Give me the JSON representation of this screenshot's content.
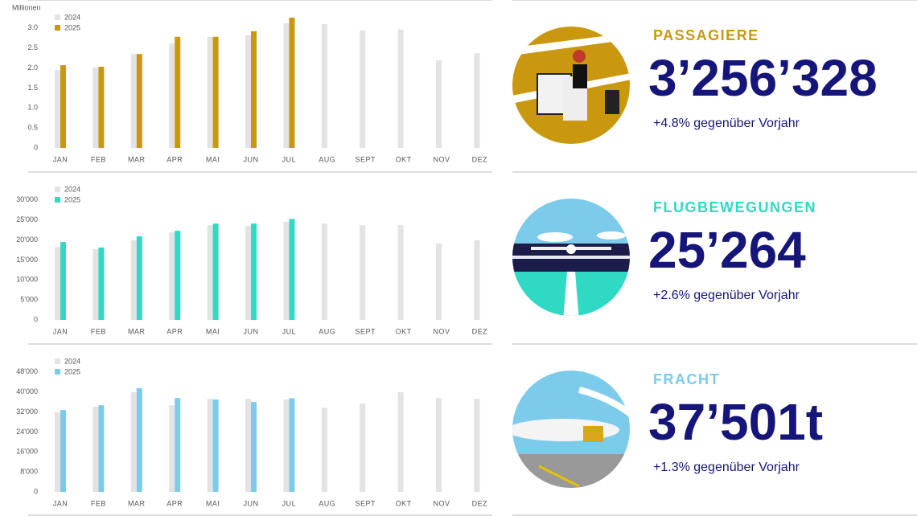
{
  "chart_data": [
    {
      "type": "bar",
      "axis_label": "Millionen",
      "categories": [
        "JAN",
        "FEB",
        "MAR",
        "APR",
        "MAI",
        "JUN",
        "JUL",
        "AUG",
        "SEPT",
        "OKT",
        "NOV",
        "DEZ"
      ],
      "series": [
        {
          "name": "2024",
          "color": "#e3e3e3",
          "values": [
            1.95,
            2.01,
            2.35,
            2.62,
            2.78,
            2.82,
            3.12,
            3.1,
            2.94,
            2.96,
            2.19,
            2.37
          ]
        },
        {
          "name": "2025",
          "color": "#c9980f",
          "values": [
            2.07,
            2.03,
            2.35,
            2.78,
            2.78,
            2.92,
            3.26,
            null,
            null,
            null,
            null,
            null
          ]
        }
      ],
      "ylim": [
        0,
        3.5
      ],
      "yticks": [
        0,
        0.5,
        {
          "value": 1,
          "label": "1.0"
        },
        1.5,
        {
          "value": 2,
          "label": "2.0"
        },
        2.5,
        {
          "value": 3,
          "label": "3.0"
        }
      ]
    },
    {
      "type": "bar",
      "categories": [
        "JAN",
        "FEB",
        "MAR",
        "APR",
        "MAI",
        "JUN",
        "JUL",
        "AUG",
        "SEPT",
        "OKT",
        "NOV",
        "DEZ"
      ],
      "series": [
        {
          "name": "2024",
          "color": "#e3e3e3",
          "values": [
            18300,
            17700,
            19900,
            21900,
            23700,
            23500,
            24500,
            24100,
            23700,
            23700,
            19100,
            19900
          ]
        },
        {
          "name": "2025",
          "color": "#2fd9c3",
          "values": [
            19500,
            18100,
            20900,
            22300,
            24100,
            24100,
            25264,
            null,
            null,
            null,
            null,
            null
          ]
        }
      ],
      "ylim": [
        0,
        35000
      ],
      "yticks": [
        0,
        {
          "value": 5000,
          "label": "5'000"
        },
        {
          "value": 10000,
          "label": "10'000"
        },
        {
          "value": 15000,
          "label": "15'000"
        },
        {
          "value": 20000,
          "label": "20'000"
        },
        {
          "value": 25000,
          "label": "25'000"
        },
        {
          "value": 30000,
          "label": "30'000"
        }
      ]
    },
    {
      "type": "bar",
      "categories": [
        "JAN",
        "FEB",
        "MAR",
        "APR",
        "MAI",
        "JUN",
        "JUL",
        "AUG",
        "SEPT",
        "OKT",
        "NOV",
        "DEZ"
      ],
      "series": [
        {
          "name": "2024",
          "color": "#e3e3e3",
          "values": [
            31800,
            34100,
            39900,
            34700,
            37300,
            37300,
            37000,
            33700,
            35400,
            39900,
            37600,
            37300
          ]
        },
        {
          "name": "2025",
          "color": "#7ccbeb",
          "values": [
            32800,
            34700,
            41500,
            37600,
            37000,
            36000,
            37501,
            null,
            null,
            null,
            null,
            null
          ]
        }
      ],
      "ylim": [
        0,
        56000
      ],
      "yticks": [
        0,
        {
          "value": 8000,
          "label": "8'000"
        },
        {
          "value": 16000,
          "label": "16'000"
        },
        {
          "value": 24000,
          "label": "24'000"
        },
        {
          "value": 32000,
          "label": "32'000"
        },
        {
          "value": 40000,
          "label": "40'000"
        },
        {
          "value": 48000,
          "label": "48'000"
        }
      ]
    }
  ],
  "stats": [
    {
      "title": "PASSAGIERE",
      "color": "#c9980f",
      "value": "3’256’328",
      "change": "+4.8% gegenüber Vorjahr"
    },
    {
      "title": "FLUGBEWEGUNGEN",
      "color": "#2fd9c3",
      "value": "25’264",
      "change": "+2.6% gegenüber Vorjahr"
    },
    {
      "title": "FRACHT",
      "color": "#7ccbeb",
      "value": "37’501t",
      "change": "+1.3% gegenüber Vorjahr"
    }
  ]
}
